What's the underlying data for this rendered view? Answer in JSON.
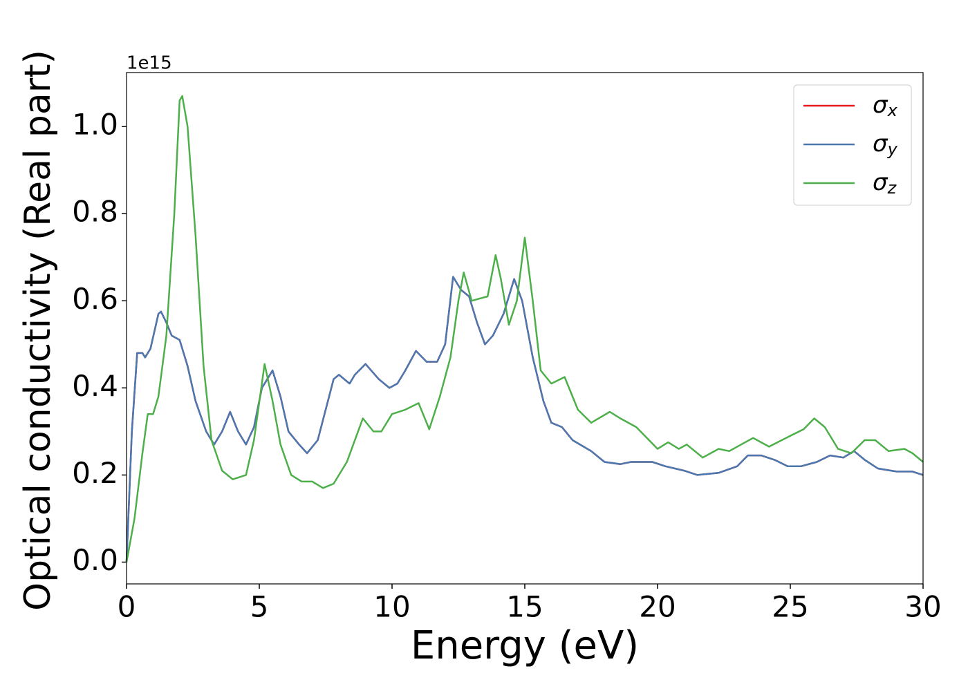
{
  "chart_data": {
    "type": "line",
    "xlabel": "Energy (eV)",
    "ylabel": "Optical conductivity (Real part)",
    "offset_text": "1e15",
    "xlim": [
      0,
      30
    ],
    "ylim": [
      -0.05,
      1.124
    ],
    "xticks": [
      0,
      5,
      10,
      15,
      20,
      25,
      30
    ],
    "yticks": [
      {
        "value": 0,
        "label": "0.0"
      },
      0.2,
      0.4,
      0.6,
      0.8,
      {
        "value": 1,
        "label": "1.0"
      }
    ],
    "legend": "upper right",
    "series": [
      {
        "name": "σx",
        "color": "#e41a1c",
        "x": [
          0,
          0.2,
          0.4,
          0.6,
          0.7,
          0.9,
          1.2,
          1.3,
          1.5,
          1.7,
          2.0,
          2.3,
          2.6,
          3.0,
          3.3,
          3.6,
          3.9,
          4.2,
          4.5,
          4.8,
          5.1,
          5.5,
          5.8,
          6.1,
          6.5,
          6.8,
          7.2,
          7.5,
          7.8,
          8.0,
          8.4,
          8.6,
          9.0,
          9.5,
          9.9,
          10.2,
          10.5,
          10.9,
          11.3,
          11.7,
          12.0,
          12.3,
          12.6,
          12.9,
          13.2,
          13.5,
          13.8,
          14.2,
          14.6,
          14.9,
          15.3,
          15.7,
          16.0,
          16.4,
          16.8,
          17.5,
          18.0,
          18.6,
          19.0,
          19.8,
          20.3,
          21.0,
          21.5,
          22.3,
          23.0,
          23.4,
          23.9,
          24.4,
          24.9,
          25.4,
          26.0,
          26.5,
          27.0,
          27.4,
          27.8,
          28.3,
          29.0,
          29.6,
          30
        ],
        "values": [
          0,
          0.3,
          0.48,
          0.48,
          0.47,
          0.49,
          0.57,
          0.575,
          0.55,
          0.52,
          0.51,
          0.45,
          0.37,
          0.3,
          0.27,
          0.3,
          0.345,
          0.3,
          0.27,
          0.31,
          0.4,
          0.44,
          0.38,
          0.3,
          0.27,
          0.25,
          0.28,
          0.35,
          0.42,
          0.43,
          0.41,
          0.43,
          0.455,
          0.42,
          0.4,
          0.41,
          0.44,
          0.485,
          0.46,
          0.46,
          0.5,
          0.655,
          0.625,
          0.61,
          0.55,
          0.5,
          0.52,
          0.57,
          0.65,
          0.6,
          0.47,
          0.37,
          0.32,
          0.31,
          0.28,
          0.255,
          0.23,
          0.225,
          0.23,
          0.23,
          0.22,
          0.21,
          0.2,
          0.205,
          0.22,
          0.245,
          0.245,
          0.235,
          0.22,
          0.22,
          0.23,
          0.245,
          0.24,
          0.255,
          0.235,
          0.215,
          0.208,
          0.208,
          0.2
        ]
      },
      {
        "name": "σy",
        "color": "#4a78b0",
        "x": [
          0,
          0.2,
          0.4,
          0.6,
          0.7,
          0.9,
          1.2,
          1.3,
          1.5,
          1.7,
          2.0,
          2.3,
          2.6,
          3.0,
          3.3,
          3.6,
          3.9,
          4.2,
          4.5,
          4.8,
          5.1,
          5.5,
          5.8,
          6.1,
          6.5,
          6.8,
          7.2,
          7.5,
          7.8,
          8.0,
          8.4,
          8.6,
          9.0,
          9.5,
          9.9,
          10.2,
          10.5,
          10.9,
          11.3,
          11.7,
          12.0,
          12.3,
          12.6,
          12.9,
          13.2,
          13.5,
          13.8,
          14.2,
          14.6,
          14.9,
          15.3,
          15.7,
          16.0,
          16.4,
          16.8,
          17.5,
          18.0,
          18.6,
          19.0,
          19.8,
          20.3,
          21.0,
          21.5,
          22.3,
          23.0,
          23.4,
          23.9,
          24.4,
          24.9,
          25.4,
          26.0,
          26.5,
          27.0,
          27.4,
          27.8,
          28.3,
          29.0,
          29.6,
          30
        ],
        "values": [
          0,
          0.3,
          0.48,
          0.48,
          0.47,
          0.49,
          0.57,
          0.575,
          0.55,
          0.52,
          0.51,
          0.45,
          0.37,
          0.3,
          0.27,
          0.3,
          0.345,
          0.3,
          0.27,
          0.31,
          0.4,
          0.44,
          0.38,
          0.3,
          0.27,
          0.25,
          0.28,
          0.35,
          0.42,
          0.43,
          0.41,
          0.43,
          0.455,
          0.42,
          0.4,
          0.41,
          0.44,
          0.485,
          0.46,
          0.46,
          0.5,
          0.655,
          0.625,
          0.61,
          0.55,
          0.5,
          0.52,
          0.57,
          0.65,
          0.6,
          0.47,
          0.37,
          0.32,
          0.31,
          0.28,
          0.255,
          0.23,
          0.225,
          0.23,
          0.23,
          0.22,
          0.21,
          0.2,
          0.205,
          0.22,
          0.245,
          0.245,
          0.235,
          0.22,
          0.22,
          0.23,
          0.245,
          0.24,
          0.255,
          0.235,
          0.215,
          0.208,
          0.208,
          0.2
        ]
      },
      {
        "name": "σz",
        "color": "#4daf4a",
        "x": [
          0,
          0.3,
          0.6,
          0.8,
          1.0,
          1.2,
          1.5,
          1.8,
          2.0,
          2.1,
          2.3,
          2.6,
          2.9,
          3.2,
          3.6,
          4.0,
          4.5,
          4.8,
          5.2,
          5.5,
          5.8,
          6.2,
          6.6,
          7.0,
          7.4,
          7.8,
          8.3,
          8.9,
          9.3,
          9.6,
          10.0,
          10.5,
          11.0,
          11.4,
          11.8,
          12.2,
          12.5,
          12.7,
          13.0,
          13.3,
          13.6,
          13.9,
          14.1,
          14.4,
          14.7,
          15.0,
          15.3,
          15.6,
          16.0,
          16.5,
          17.0,
          17.5,
          18.2,
          18.6,
          19.2,
          20.0,
          20.4,
          20.8,
          21.1,
          21.7,
          22.3,
          22.7,
          23.6,
          24.2,
          25.0,
          25.5,
          25.9,
          26.3,
          26.8,
          27.3,
          27.8,
          28.2,
          28.7,
          29.3,
          29.6,
          30
        ],
        "values": [
          0,
          0.1,
          0.25,
          0.34,
          0.34,
          0.38,
          0.52,
          0.8,
          1.06,
          1.07,
          1.0,
          0.75,
          0.45,
          0.28,
          0.21,
          0.19,
          0.2,
          0.28,
          0.455,
          0.37,
          0.27,
          0.2,
          0.185,
          0.185,
          0.17,
          0.18,
          0.23,
          0.33,
          0.3,
          0.3,
          0.34,
          0.35,
          0.365,
          0.305,
          0.38,
          0.47,
          0.6,
          0.665,
          0.6,
          0.605,
          0.61,
          0.705,
          0.65,
          0.545,
          0.6,
          0.745,
          0.6,
          0.44,
          0.41,
          0.425,
          0.35,
          0.32,
          0.345,
          0.33,
          0.31,
          0.26,
          0.275,
          0.26,
          0.27,
          0.24,
          0.26,
          0.255,
          0.285,
          0.265,
          0.29,
          0.305,
          0.33,
          0.31,
          0.26,
          0.25,
          0.28,
          0.28,
          0.255,
          0.26,
          0.25,
          0.23
        ]
      }
    ]
  }
}
